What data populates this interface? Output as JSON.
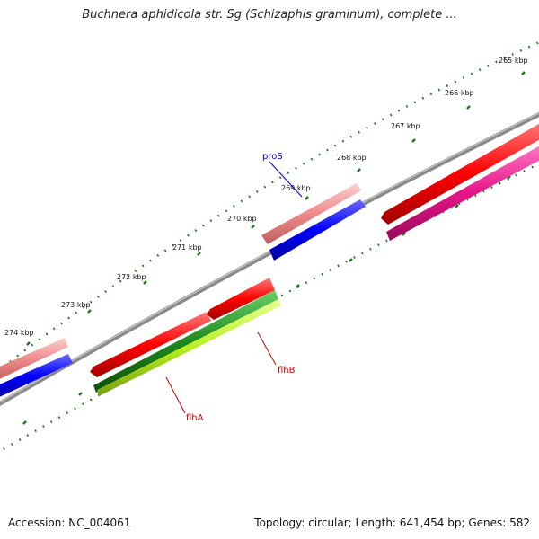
{
  "title": "Buchnera aphidicola str. Sg (Schizaphis graminum), complete ...",
  "footer": {
    "accession": "Accession: NC_004061",
    "summary": "Topology: circular; Length: 641,454 bp; Genes: 582"
  },
  "ticks": [
    "265 kbp",
    "266 kbp",
    "267 kbp",
    "268 kbp",
    "269 kbp",
    "270 kbp",
    "271 kbp",
    "272 kbp",
    "273 kbp",
    "274 kbp"
  ],
  "genes": {
    "proS": {
      "label": "proS",
      "color": "#0000cc"
    },
    "flhB": {
      "label": "flhB",
      "color": "#cc0000"
    },
    "flhA": {
      "label": "flhA",
      "color": "#cc0000"
    }
  },
  "colors": {
    "backbone": "#808080",
    "ticks": "#1a7a1a",
    "cds_forward": "#ff0000",
    "cds_pink": "#f08080",
    "cds_blue": "#0000ff",
    "cds_magenta": "#e6158a",
    "cds_green": "#1f8a1f",
    "cds_lime": "#b8f020"
  }
}
